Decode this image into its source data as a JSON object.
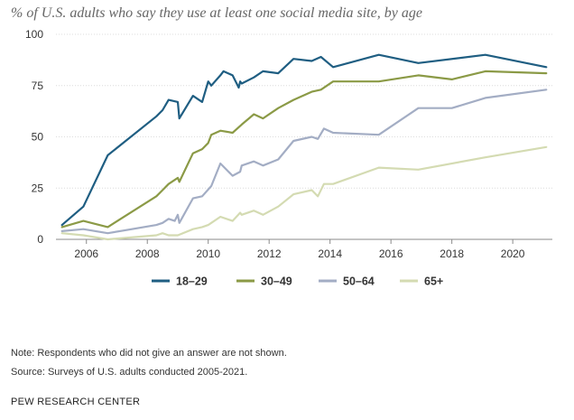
{
  "chart_data": {
    "type": "line",
    "title": "% of U.S. adults who say they use at least one social media site, by age",
    "xlabel": "",
    "ylabel": "",
    "xlim": [
      2005,
      2021.3
    ],
    "ylim": [
      0,
      100
    ],
    "yticks": [
      0,
      25,
      50,
      75,
      100
    ],
    "xticks": [
      2006,
      2008,
      2010,
      2012,
      2014,
      2016,
      2018,
      2020
    ],
    "grid": "horizontal",
    "legend": "bottom-center",
    "series": [
      {
        "name": "18-29",
        "label": "18–29",
        "color": "#1f5e82",
        "points": [
          [
            2005.2,
            7
          ],
          [
            2005.9,
            16
          ],
          [
            2006.7,
            41
          ],
          [
            2008.3,
            60
          ],
          [
            2008.5,
            63
          ],
          [
            2008.7,
            68
          ],
          [
            2009.0,
            67
          ],
          [
            2009.05,
            59
          ],
          [
            2009.5,
            70
          ],
          [
            2009.8,
            67
          ],
          [
            2010.0,
            77
          ],
          [
            2010.1,
            75
          ],
          [
            2010.4,
            80
          ],
          [
            2010.5,
            82
          ],
          [
            2010.8,
            80
          ],
          [
            2011.0,
            74
          ],
          [
            2011.05,
            77
          ],
          [
            2011.1,
            76
          ],
          [
            2011.5,
            79
          ],
          [
            2011.8,
            82
          ],
          [
            2012.3,
            81
          ],
          [
            2012.8,
            88
          ],
          [
            2013.4,
            87
          ],
          [
            2013.7,
            89
          ],
          [
            2014.1,
            84
          ],
          [
            2015.6,
            90
          ],
          [
            2016.9,
            86
          ],
          [
            2019.1,
            90
          ],
          [
            2021.1,
            84
          ]
        ]
      },
      {
        "name": "30-49",
        "label": "30–49",
        "color": "#8b9a46",
        "points": [
          [
            2005.2,
            6
          ],
          [
            2005.9,
            9
          ],
          [
            2006.7,
            6
          ],
          [
            2008.3,
            21
          ],
          [
            2008.5,
            24
          ],
          [
            2008.7,
            27
          ],
          [
            2009.0,
            30
          ],
          [
            2009.05,
            28
          ],
          [
            2009.5,
            42
          ],
          [
            2009.8,
            44
          ],
          [
            2010.0,
            47
          ],
          [
            2010.1,
            51
          ],
          [
            2010.4,
            53
          ],
          [
            2010.8,
            52
          ],
          [
            2011.1,
            56
          ],
          [
            2011.5,
            61
          ],
          [
            2011.8,
            59
          ],
          [
            2012.3,
            64
          ],
          [
            2012.8,
            68
          ],
          [
            2013.4,
            72
          ],
          [
            2013.7,
            73
          ],
          [
            2014.1,
            77
          ],
          [
            2015.6,
            77
          ],
          [
            2016.9,
            80
          ],
          [
            2018.0,
            78
          ],
          [
            2019.1,
            82
          ],
          [
            2021.1,
            81
          ]
        ]
      },
      {
        "name": "50-64",
        "label": "50–64",
        "color": "#a3adc4",
        "points": [
          [
            2005.2,
            4
          ],
          [
            2005.9,
            5
          ],
          [
            2006.7,
            3
          ],
          [
            2008.3,
            7
          ],
          [
            2008.5,
            8
          ],
          [
            2008.7,
            10
          ],
          [
            2008.9,
            9
          ],
          [
            2009.0,
            12
          ],
          [
            2009.05,
            8
          ],
          [
            2009.5,
            20
          ],
          [
            2009.8,
            21
          ],
          [
            2010.1,
            26
          ],
          [
            2010.4,
            37
          ],
          [
            2010.8,
            31
          ],
          [
            2011.05,
            33
          ],
          [
            2011.1,
            36
          ],
          [
            2011.5,
            38
          ],
          [
            2011.8,
            36
          ],
          [
            2012.3,
            39
          ],
          [
            2012.8,
            48
          ],
          [
            2013.4,
            50
          ],
          [
            2013.6,
            49
          ],
          [
            2013.8,
            54
          ],
          [
            2014.1,
            52
          ],
          [
            2015.6,
            51
          ],
          [
            2016.9,
            64
          ],
          [
            2018.0,
            64
          ],
          [
            2019.1,
            69
          ],
          [
            2021.1,
            73
          ]
        ]
      },
      {
        "name": "65+",
        "label": "65+",
        "color": "#d4dbb2",
        "points": [
          [
            2005.2,
            3
          ],
          [
            2005.9,
            2
          ],
          [
            2006.7,
            0
          ],
          [
            2008.3,
            2
          ],
          [
            2008.5,
            3
          ],
          [
            2008.7,
            2
          ],
          [
            2009.0,
            2
          ],
          [
            2009.5,
            5
          ],
          [
            2009.8,
            6
          ],
          [
            2010.0,
            7
          ],
          [
            2010.1,
            8
          ],
          [
            2010.4,
            11
          ],
          [
            2010.8,
            9
          ],
          [
            2011.05,
            13
          ],
          [
            2011.1,
            12
          ],
          [
            2011.5,
            14
          ],
          [
            2011.8,
            12
          ],
          [
            2012.3,
            16
          ],
          [
            2012.8,
            22
          ],
          [
            2013.4,
            24
          ],
          [
            2013.6,
            21
          ],
          [
            2013.8,
            27
          ],
          [
            2014.1,
            27
          ],
          [
            2015.6,
            35
          ],
          [
            2016.9,
            34
          ],
          [
            2019.1,
            40
          ],
          [
            2021.1,
            45
          ]
        ]
      }
    ]
  },
  "notes": {
    "note": "Note: Respondents who did not give an answer are not shown.",
    "source": "Source: Surveys of U.S. adults conducted 2005-2021."
  },
  "brand": "PEW RESEARCH CENTER"
}
